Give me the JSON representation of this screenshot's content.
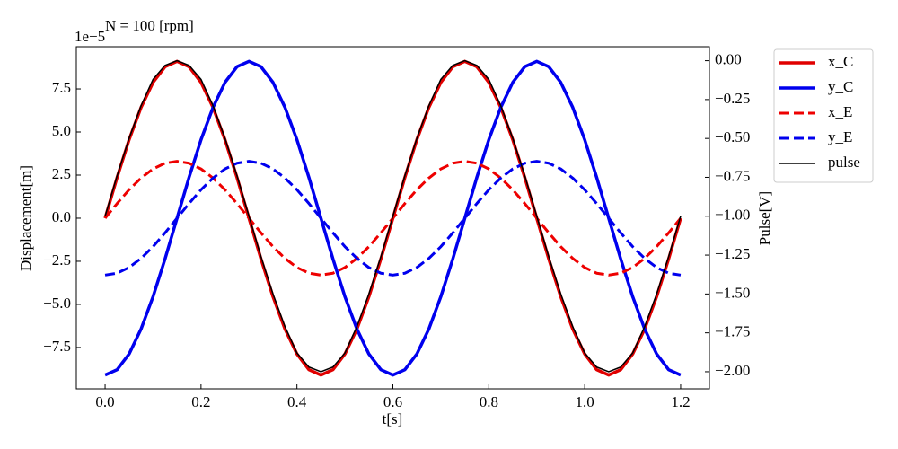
{
  "chart_data": {
    "type": "line",
    "title": "N = 100 [rpm]",
    "offset_label": "1e−5",
    "xlabel": "t[s]",
    "ylabel": "Displacement[m]",
    "y2label": "Pulse[V]",
    "x": [
      0,
      0.025,
      0.05,
      0.075,
      0.1,
      0.125,
      0.15,
      0.175,
      0.2,
      0.225,
      0.25,
      0.275,
      0.3,
      0.325,
      0.35,
      0.375,
      0.4,
      0.425,
      0.45,
      0.475,
      0.5,
      0.525,
      0.55,
      0.575,
      0.6,
      0.625,
      0.65,
      0.675,
      0.7,
      0.725,
      0.75,
      0.775,
      0.8,
      0.825,
      0.85,
      0.875,
      0.9,
      0.925,
      0.95,
      0.975,
      1.0,
      1.025,
      1.05,
      1.075,
      1.1,
      1.125,
      1.15,
      1.175,
      1.2
    ],
    "series": [
      {
        "name": "x_C",
        "color": "#e00000",
        "linewidth": 3.5,
        "linestyle": "solid",
        "values": [
          0,
          2.36,
          4.55,
          6.43,
          7.88,
          8.79,
          9.1,
          8.79,
          7.88,
          6.43,
          4.55,
          2.36,
          0,
          -2.36,
          -4.55,
          -6.43,
          -7.88,
          -8.79,
          -9.1,
          -8.79,
          -7.88,
          -6.43,
          -4.55,
          -2.36,
          0,
          2.36,
          4.55,
          6.43,
          7.88,
          8.79,
          9.1,
          8.79,
          7.88,
          6.43,
          4.55,
          2.36,
          0,
          -2.36,
          -4.55,
          -6.43,
          -7.88,
          -8.79,
          -9.1,
          -8.79,
          -7.88,
          -6.43,
          -4.55,
          -2.36,
          0
        ]
      },
      {
        "name": "y_C",
        "color": "#0000ee",
        "linewidth": 3.5,
        "linestyle": "solid",
        "values": [
          -9.1,
          -8.79,
          -7.88,
          -6.43,
          -4.55,
          -2.36,
          0,
          2.36,
          4.55,
          6.43,
          7.88,
          8.79,
          9.1,
          8.79,
          7.88,
          6.43,
          4.55,
          2.36,
          0,
          -2.36,
          -4.55,
          -6.43,
          -7.88,
          -8.79,
          -9.1,
          -8.79,
          -7.88,
          -6.43,
          -4.55,
          -2.36,
          0,
          2.36,
          4.55,
          6.43,
          7.88,
          8.79,
          9.1,
          8.79,
          7.88,
          6.43,
          4.55,
          2.36,
          0,
          -2.36,
          -4.55,
          -6.43,
          -7.88,
          -8.79,
          -9.1
        ]
      },
      {
        "name": "x_E",
        "color": "#ee0000",
        "linewidth": 3,
        "linestyle": "dashed",
        "values": [
          0,
          0.85,
          1.65,
          2.33,
          2.86,
          3.19,
          3.3,
          3.19,
          2.86,
          2.33,
          1.65,
          0.85,
          0,
          -0.85,
          -1.65,
          -2.33,
          -2.86,
          -3.19,
          -3.3,
          -3.19,
          -2.86,
          -2.33,
          -1.65,
          -0.85,
          0,
          0.85,
          1.65,
          2.33,
          2.86,
          3.19,
          3.3,
          3.19,
          2.86,
          2.33,
          1.65,
          0.85,
          0,
          -0.85,
          -1.65,
          -2.33,
          -2.86,
          -3.19,
          -3.3,
          -3.19,
          -2.86,
          -2.33,
          -1.65,
          -0.85,
          0
        ]
      },
      {
        "name": "y_E",
        "color": "#0000ee",
        "linewidth": 3,
        "linestyle": "dashed",
        "values": [
          -3.3,
          -3.19,
          -2.86,
          -2.33,
          -1.65,
          -0.85,
          0,
          0.85,
          1.65,
          2.33,
          2.86,
          3.19,
          3.3,
          3.19,
          2.86,
          2.33,
          1.65,
          0.85,
          0,
          -0.85,
          -1.65,
          -2.33,
          -2.86,
          -3.19,
          -3.3,
          -3.19,
          -2.86,
          -2.33,
          -1.65,
          -0.85,
          0,
          0.85,
          1.65,
          2.33,
          2.86,
          3.19,
          3.3,
          3.19,
          2.86,
          2.33,
          1.65,
          0.85,
          0,
          -0.85,
          -1.65,
          -2.33,
          -2.86,
          -3.19,
          -3.3
        ]
      },
      {
        "name": "pulse",
        "color": "#000000",
        "linewidth": 1.5,
        "linestyle": "solid",
        "axis": "y2",
        "values": [
          -1,
          -0.74,
          -0.5,
          -0.29,
          -0.12,
          -0.03,
          0,
          -0.03,
          -0.12,
          -0.29,
          -0.5,
          -0.74,
          -1,
          -1.26,
          -1.5,
          -1.71,
          -1.88,
          -1.97,
          -2,
          -1.97,
          -1.88,
          -1.71,
          -1.5,
          -1.26,
          -1,
          -0.74,
          -0.5,
          -0.29,
          -0.12,
          -0.03,
          0,
          -0.03,
          -0.12,
          -0.29,
          -0.5,
          -0.74,
          -1,
          -1.26,
          -1.5,
          -1.71,
          -1.88,
          -1.97,
          -2,
          -1.97,
          -1.88,
          -1.71,
          -1.5,
          -1.26,
          -1
        ]
      }
    ],
    "xlim": [
      -0.06,
      1.26
    ],
    "xticks": [
      {
        "value": 0,
        "label": "0.0"
      },
      0.2,
      0.4,
      0.6,
      0.8,
      {
        "value": 1,
        "label": "1.0"
      },
      1.2
    ],
    "ylim": [
      -9.9,
      9.95
    ],
    "yticks": [
      {
        "value": -7.5,
        "label": "−7.5"
      },
      {
        "value": -5,
        "label": "−5.0"
      },
      {
        "value": -2.5,
        "label": "−2.5"
      },
      {
        "value": 0,
        "label": "0.0"
      },
      2.5,
      {
        "value": 5,
        "label": "5.0"
      },
      7.5
    ],
    "y2lim": [
      -2.11,
      0.09
    ],
    "y2ticks": [
      {
        "value": 0,
        "label": "0.00"
      },
      {
        "value": -0.25,
        "label": "−0.25"
      },
      {
        "value": -0.5,
        "label": "−0.50"
      },
      {
        "value": -0.75,
        "label": "−0.75"
      },
      {
        "value": -1,
        "label": "−1.00"
      },
      {
        "value": -1.25,
        "label": "−1.25"
      },
      {
        "value": -1.5,
        "label": "−1.50"
      },
      {
        "value": -1.75,
        "label": "−1.75"
      },
      {
        "value": -2,
        "label": "−2.00"
      }
    ],
    "legend": "outside upper right",
    "grid": false
  }
}
